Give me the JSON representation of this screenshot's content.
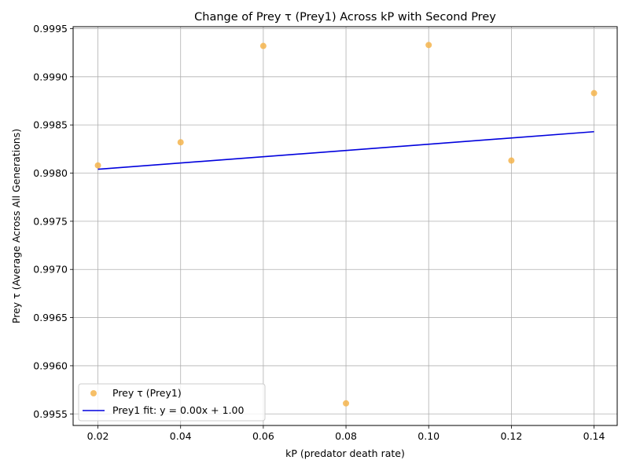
{
  "chart_data": {
    "type": "scatter",
    "title": "Change of Prey τ (Prey1) Across kP with Second Prey",
    "xlabel": "kP (predator death rate)",
    "ylabel": "Prey τ (Average Across All Generations)",
    "xlim": [
      0.014,
      0.1456
    ],
    "ylim": [
      0.99538,
      0.99952
    ],
    "xticks": [
      "0.02",
      "0.04",
      "0.06",
      "0.08",
      "0.10",
      "0.12",
      "0.14"
    ],
    "yticks": [
      "0.9955",
      "0.9960",
      "0.9965",
      "0.9970",
      "0.9975",
      "0.9980",
      "0.9985",
      "0.9990",
      "0.9995"
    ],
    "grid": true,
    "legend_position": "lower-left",
    "series": [
      {
        "name": "Prey τ (Prey1)",
        "kind": "scatter",
        "color": "#f5b44c",
        "x": [
          0.02,
          0.04,
          0.06,
          0.08,
          0.1,
          0.12,
          0.14
        ],
        "y": [
          0.99808,
          0.99832,
          0.99932,
          0.99561,
          0.99933,
          0.99813,
          0.99883
        ]
      },
      {
        "name": "Prey1 fit: y = 0.00x + 1.00",
        "kind": "line",
        "color": "#0000dd",
        "x": [
          0.02,
          0.14
        ],
        "y": [
          0.99804,
          0.99843
        ]
      }
    ]
  }
}
